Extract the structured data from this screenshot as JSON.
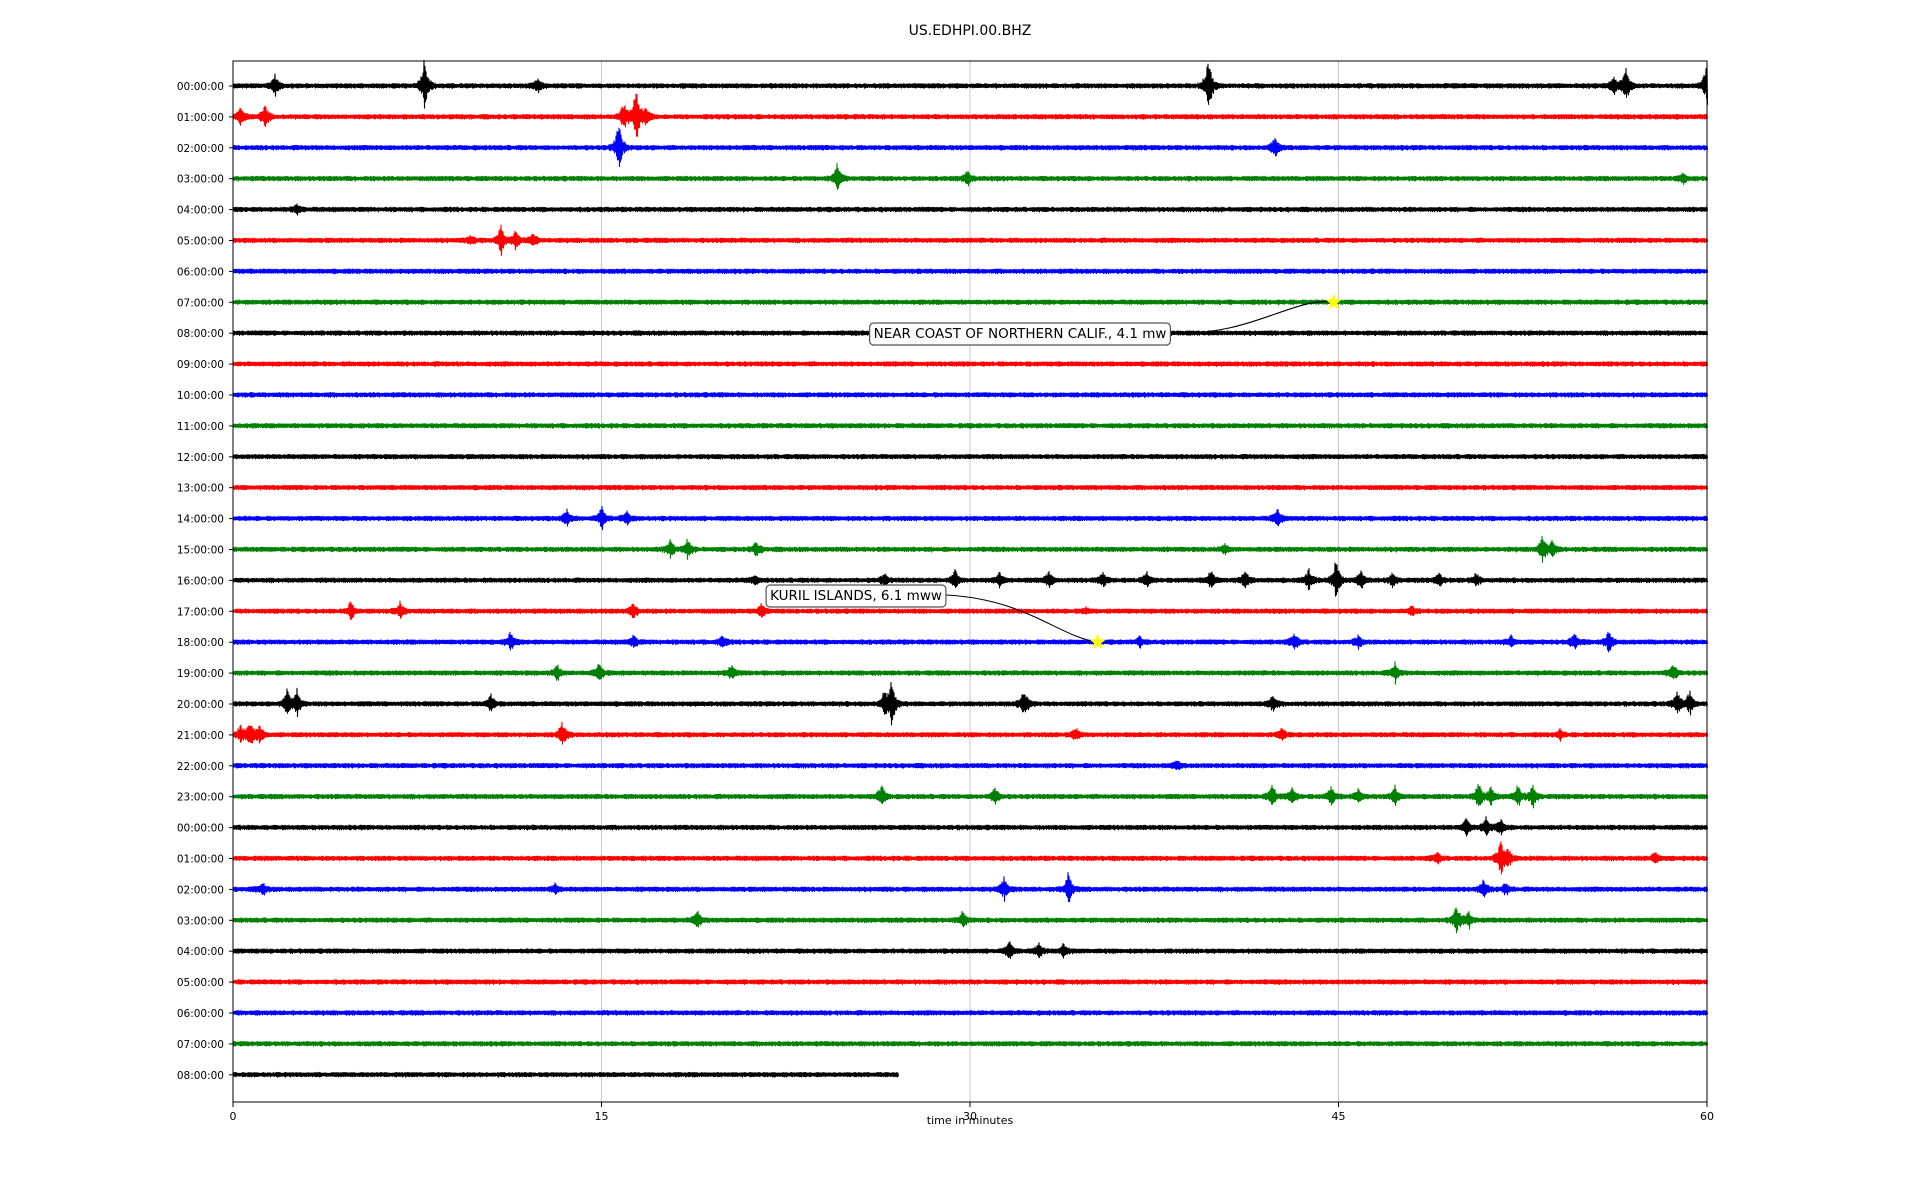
{
  "chart_data": {
    "type": "line",
    "title": "US.EDHPI.00.BHZ",
    "xlabel": "time in minutes",
    "ylabel": "",
    "xlim": [
      0,
      60
    ],
    "x_ticks": [
      0,
      15,
      30,
      45,
      60
    ],
    "grid": "vertical lines at 15-minute ticks",
    "series_color_cycle": [
      "#000000",
      "#ff0000",
      "#0000ff",
      "#008000"
    ],
    "rows": [
      {
        "label": "00:00:00",
        "end_minute": 60,
        "bursts": [
          [
            1.7,
            0.7
          ],
          [
            7.8,
            2.0
          ],
          [
            12.4,
            0.4
          ],
          [
            39.7,
            2.0
          ],
          [
            56.2,
            0.6
          ],
          [
            56.7,
            1.1
          ],
          [
            60.0,
            1.6
          ]
        ]
      },
      {
        "label": "01:00:00",
        "end_minute": 60,
        "bursts": [
          [
            0.3,
            0.6
          ],
          [
            1.3,
            0.8
          ],
          [
            15.9,
            0.9
          ],
          [
            16.4,
            1.9
          ],
          [
            16.8,
            0.7
          ]
        ]
      },
      {
        "label": "02:00:00",
        "end_minute": 60,
        "bursts": [
          [
            15.7,
            1.7
          ],
          [
            42.4,
            0.7
          ]
        ]
      },
      {
        "label": "03:00:00",
        "end_minute": 60,
        "bursts": [
          [
            24.6,
            0.9
          ],
          [
            29.9,
            0.5
          ],
          [
            59.0,
            0.3
          ]
        ]
      },
      {
        "label": "04:00:00",
        "end_minute": 60,
        "bursts": [
          [
            2.6,
            0.3
          ]
        ]
      },
      {
        "label": "05:00:00",
        "end_minute": 60,
        "bursts": [
          [
            9.7,
            0.3
          ],
          [
            10.9,
            0.9
          ],
          [
            11.5,
            0.6
          ],
          [
            12.2,
            0.5
          ]
        ]
      },
      {
        "label": "06:00:00",
        "end_minute": 60,
        "bursts": []
      },
      {
        "label": "07:00:00",
        "end_minute": 60,
        "bursts": []
      },
      {
        "label": "08:00:00",
        "end_minute": 60,
        "bursts": []
      },
      {
        "label": "09:00:00",
        "end_minute": 60,
        "bursts": []
      },
      {
        "label": "10:00:00",
        "end_minute": 60,
        "bursts": []
      },
      {
        "label": "11:00:00",
        "end_minute": 60,
        "bursts": []
      },
      {
        "label": "12:00:00",
        "end_minute": 60,
        "bursts": []
      },
      {
        "label": "13:00:00",
        "end_minute": 60,
        "bursts": []
      },
      {
        "label": "14:00:00",
        "end_minute": 60,
        "bursts": [
          [
            13.6,
            0.6
          ],
          [
            15.0,
            0.8
          ],
          [
            16.0,
            0.5
          ],
          [
            42.5,
            0.6
          ]
        ]
      },
      {
        "label": "15:00:00",
        "end_minute": 60,
        "bursts": [
          [
            17.8,
            0.6
          ],
          [
            18.5,
            0.6
          ],
          [
            21.3,
            0.5
          ],
          [
            40.4,
            0.3
          ],
          [
            53.3,
            0.8
          ],
          [
            53.7,
            0.5
          ]
        ]
      },
      {
        "label": "16:00:00",
        "end_minute": 60,
        "bursts": [
          [
            21.2,
            0.3
          ],
          [
            26.5,
            0.4
          ],
          [
            29.4,
            0.6
          ],
          [
            31.2,
            0.5
          ],
          [
            33.2,
            0.5
          ],
          [
            35.4,
            0.4
          ],
          [
            37.2,
            0.5
          ],
          [
            39.8,
            0.6
          ],
          [
            41.2,
            0.6
          ],
          [
            43.8,
            0.7
          ],
          [
            44.9,
            1.4
          ],
          [
            45.9,
            0.6
          ],
          [
            47.2,
            0.4
          ],
          [
            49.1,
            0.4
          ],
          [
            50.6,
            0.4
          ]
        ]
      },
      {
        "label": "17:00:00",
        "end_minute": 60,
        "bursts": [
          [
            4.8,
            0.6
          ],
          [
            6.8,
            0.5
          ],
          [
            16.3,
            0.5
          ],
          [
            21.5,
            0.4
          ],
          [
            34.7,
            0.2
          ],
          [
            48.0,
            0.3
          ]
        ]
      },
      {
        "label": "18:00:00",
        "end_minute": 60,
        "bursts": [
          [
            11.3,
            0.6
          ],
          [
            16.3,
            0.4
          ],
          [
            19.9,
            0.4
          ],
          [
            36.9,
            0.3
          ],
          [
            43.2,
            0.6
          ],
          [
            45.8,
            0.4
          ],
          [
            52.0,
            0.4
          ],
          [
            54.6,
            0.6
          ],
          [
            56.0,
            0.7
          ]
        ]
      },
      {
        "label": "19:00:00",
        "end_minute": 60,
        "bursts": [
          [
            13.2,
            0.5
          ],
          [
            14.9,
            0.6
          ],
          [
            20.3,
            0.5
          ],
          [
            47.3,
            0.6
          ],
          [
            58.6,
            0.6
          ]
        ]
      },
      {
        "label": "20:00:00",
        "end_minute": 60,
        "bursts": [
          [
            2.2,
            0.8
          ],
          [
            2.6,
            1.0
          ],
          [
            10.5,
            0.6
          ],
          [
            26.5,
            0.7
          ],
          [
            26.8,
            1.6
          ],
          [
            32.2,
            0.9
          ],
          [
            42.3,
            0.6
          ],
          [
            58.8,
            0.8
          ],
          [
            59.3,
            0.8
          ]
        ]
      },
      {
        "label": "21:00:00",
        "end_minute": 60,
        "bursts": [
          [
            0.3,
            0.6
          ],
          [
            0.7,
            0.8
          ],
          [
            1.1,
            0.6
          ],
          [
            13.4,
            0.8
          ],
          [
            34.3,
            0.4
          ],
          [
            42.7,
            0.4
          ],
          [
            54.0,
            0.3
          ]
        ]
      },
      {
        "label": "22:00:00",
        "end_minute": 60,
        "bursts": [
          [
            38.4,
            0.3
          ]
        ]
      },
      {
        "label": "23:00:00",
        "end_minute": 60,
        "bursts": [
          [
            26.4,
            0.7
          ],
          [
            31.0,
            0.6
          ],
          [
            42.3,
            0.8
          ],
          [
            43.1,
            0.6
          ],
          [
            44.7,
            0.6
          ],
          [
            45.8,
            0.4
          ],
          [
            47.3,
            0.6
          ],
          [
            50.7,
            0.9
          ],
          [
            51.2,
            0.6
          ],
          [
            52.3,
            0.7
          ],
          [
            52.9,
            0.7
          ]
        ]
      },
      {
        "label": "00:00:00",
        "end_minute": 60,
        "bursts": [
          [
            50.2,
            0.5
          ],
          [
            51.0,
            0.6
          ],
          [
            51.6,
            0.5
          ]
        ]
      },
      {
        "label": "01:00:00",
        "end_minute": 60,
        "bursts": [
          [
            49.0,
            0.4
          ],
          [
            51.6,
            1.2
          ],
          [
            51.9,
            0.6
          ],
          [
            57.9,
            0.4
          ]
        ]
      },
      {
        "label": "02:00:00",
        "end_minute": 60,
        "bursts": [
          [
            1.2,
            0.4
          ],
          [
            13.1,
            0.3
          ],
          [
            31.4,
            0.8
          ],
          [
            34.0,
            1.0
          ],
          [
            50.9,
            0.6
          ],
          [
            51.8,
            0.4
          ]
        ]
      },
      {
        "label": "03:00:00",
        "end_minute": 60,
        "bursts": [
          [
            18.9,
            0.6
          ],
          [
            29.7,
            0.6
          ],
          [
            49.8,
            1.0
          ],
          [
            50.3,
            0.5
          ]
        ]
      },
      {
        "label": "04:00:00",
        "end_minute": 60,
        "bursts": [
          [
            31.6,
            0.6
          ],
          [
            32.8,
            0.5
          ],
          [
            33.8,
            0.4
          ]
        ]
      },
      {
        "label": "05:00:00",
        "end_minute": 60,
        "bursts": []
      },
      {
        "label": "06:00:00",
        "end_minute": 60,
        "bursts": []
      },
      {
        "label": "07:00:00",
        "end_minute": 60,
        "bursts": []
      },
      {
        "label": "08:00:00",
        "end_minute": 27.1,
        "bursts": []
      }
    ],
    "events": [
      {
        "label": "NEAR COAST OF NORTHERN CALIF., 4.1 mw",
        "row": 7,
        "minute": 44.8,
        "color": "#ffff00"
      },
      {
        "label": "KURIL ISLANDS, 6.1 mww",
        "row": 18,
        "minute": 35.2,
        "color": "#ffff00"
      }
    ]
  }
}
